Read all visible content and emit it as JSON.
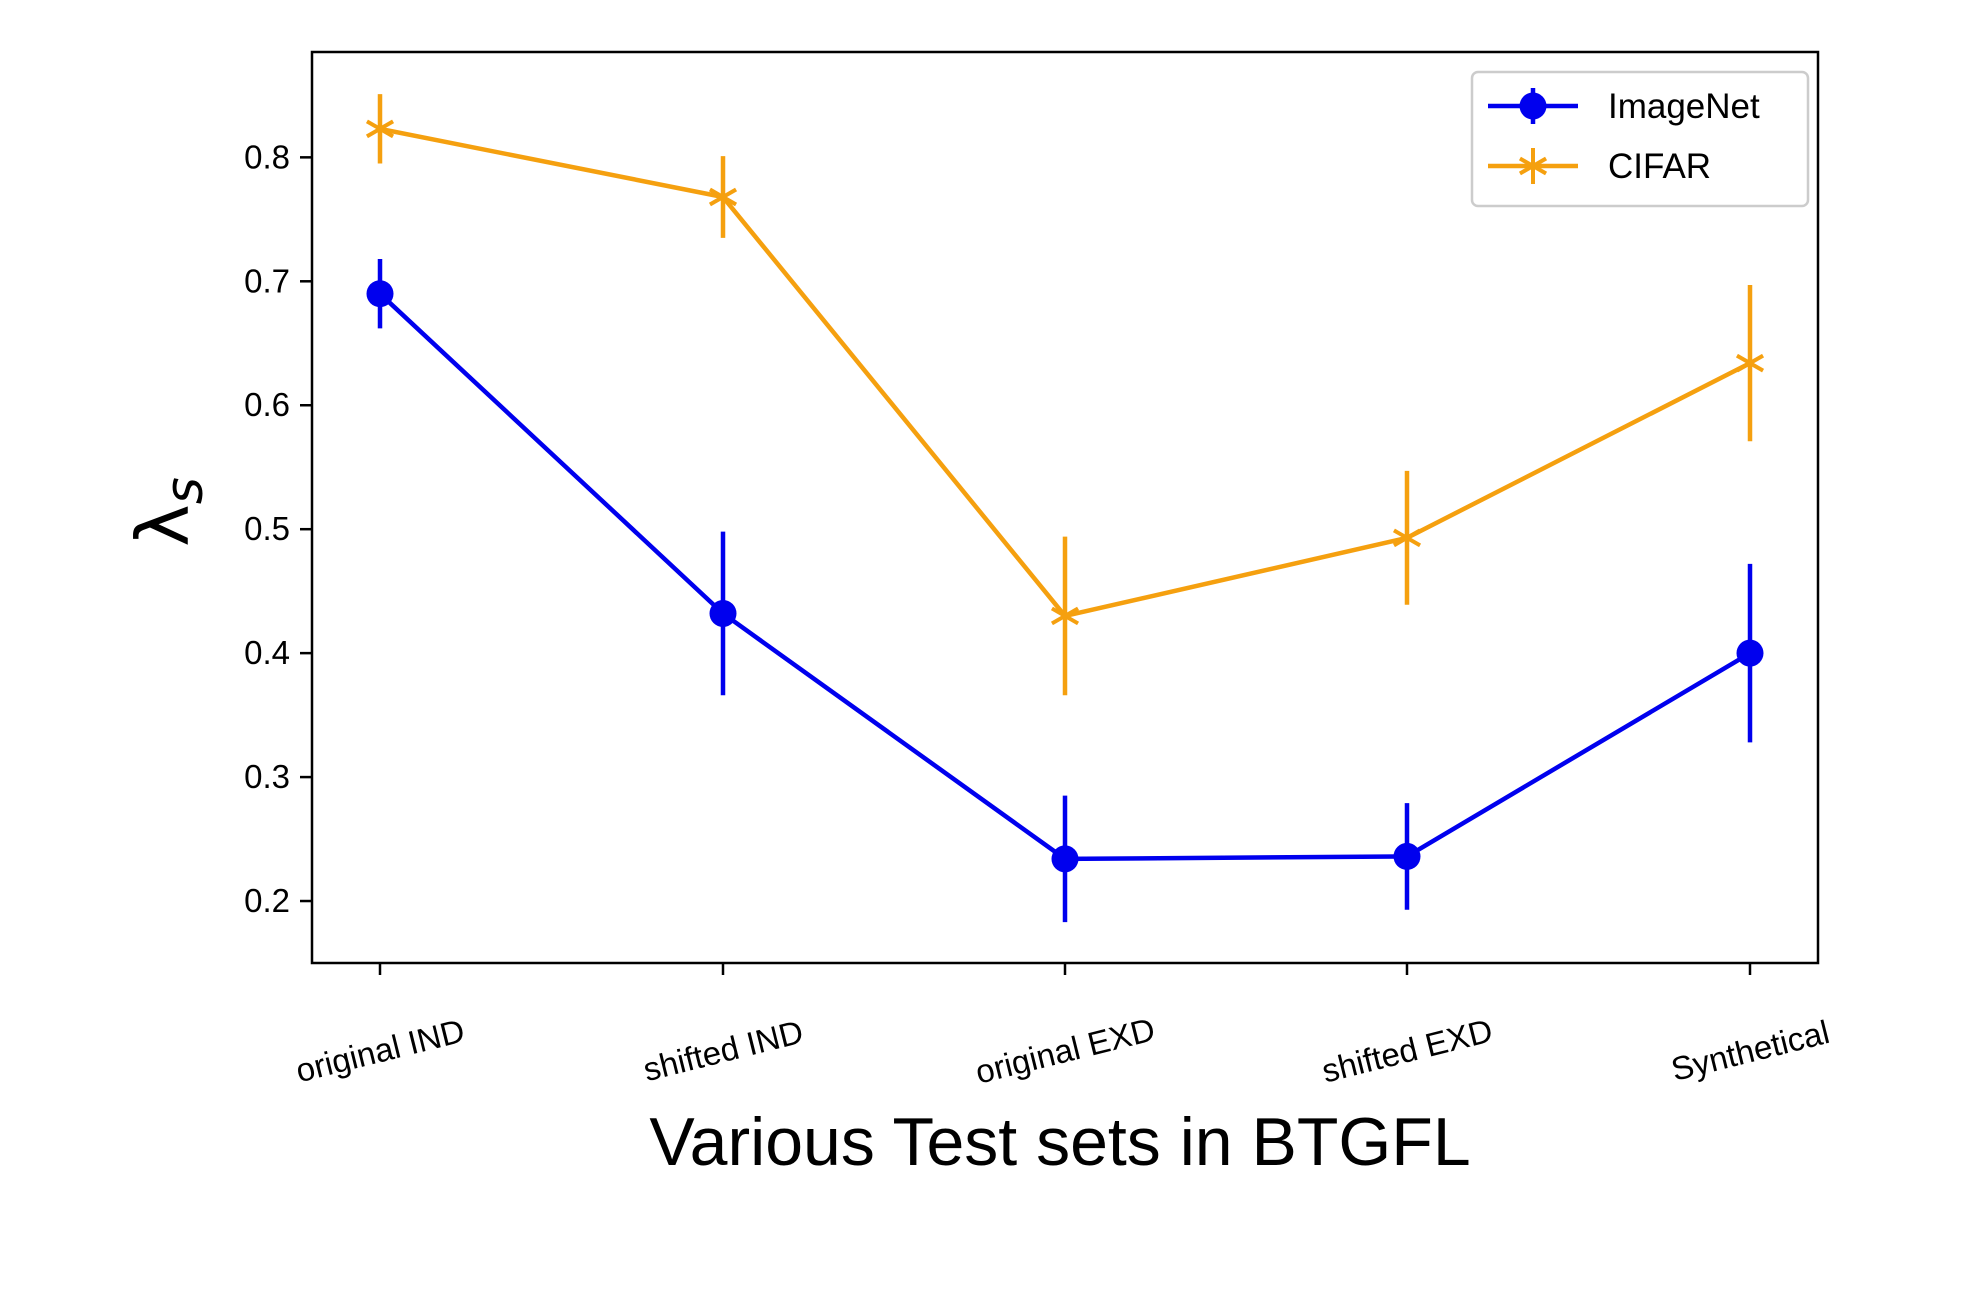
{
  "chart_data": {
    "type": "line",
    "categories": [
      "original IND",
      "shifted IND",
      "original EXD",
      "shifted EXD",
      "Synthetical"
    ],
    "series": [
      {
        "name": "ImageNet",
        "color": "#0000ee",
        "marker": "circle",
        "values": [
          0.69,
          0.432,
          0.234,
          0.236,
          0.4
        ],
        "errors": [
          0.028,
          0.066,
          0.051,
          0.043,
          0.072
        ]
      },
      {
        "name": "CIFAR",
        "color": "#f5a00f",
        "marker": "x-star",
        "values": [
          0.823,
          0.768,
          0.43,
          0.493,
          0.634
        ],
        "errors": [
          0.028,
          0.033,
          0.064,
          0.054,
          0.063
        ]
      }
    ],
    "xlabel": "Various Test sets in BTGFL",
    "ylabel": "λ",
    "ylabel_subscript": "s",
    "ylim": [
      0.15,
      0.885
    ],
    "yticks": [
      "0.2",
      "0.3",
      "0.4",
      "0.5",
      "0.6",
      "0.7",
      "0.8"
    ],
    "grid": false,
    "legend_position": "top-right"
  }
}
